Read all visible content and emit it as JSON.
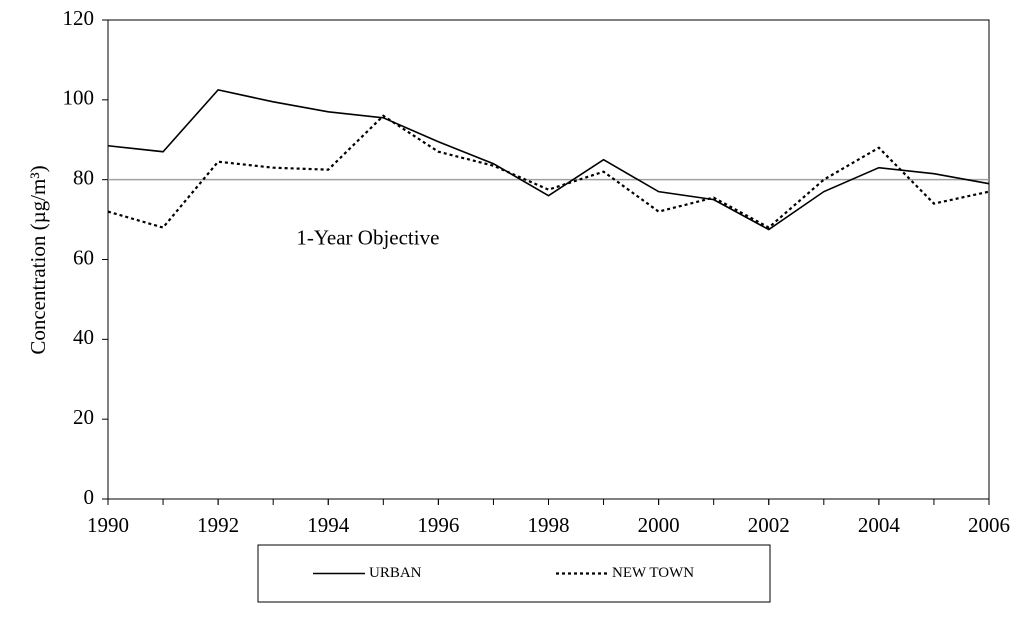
{
  "chart_data": {
    "type": "line",
    "y_label": "Concentration (µg/m³)",
    "x": [
      1990,
      1991,
      1992,
      1993,
      1994,
      1995,
      1996,
      1997,
      1998,
      1999,
      2000,
      2001,
      2002,
      2003,
      2004,
      2005,
      2006
    ],
    "series": [
      {
        "name": "URBAN",
        "color": "#000000",
        "dash": "solid",
        "values": [
          88.5,
          87,
          102.5,
          99.5,
          97,
          95.5,
          89.5,
          84,
          76,
          85,
          77,
          75,
          67.5,
          77,
          83,
          81.5,
          79
        ]
      },
      {
        "name": "NEW TOWN",
        "color": "#000000",
        "dash": "dotted",
        "values": [
          72,
          68,
          84.5,
          83,
          82.5,
          96,
          87,
          83.5,
          77.5,
          82,
          72,
          75.5,
          68,
          80,
          88,
          74,
          77
        ]
      }
    ],
    "reference_line": {
      "value": 80,
      "label": "1-Year Objective",
      "color": "#a0a0a0"
    },
    "xlim": [
      1990,
      2006
    ],
    "xticks": [
      1990,
      1992,
      1994,
      1996,
      1998,
      2000,
      2002,
      2004,
      2006
    ],
    "ylim": [
      0,
      120
    ],
    "yticks": [
      0,
      20,
      40,
      60,
      80,
      100,
      120
    ],
    "grid": false,
    "legend": "bottom"
  }
}
